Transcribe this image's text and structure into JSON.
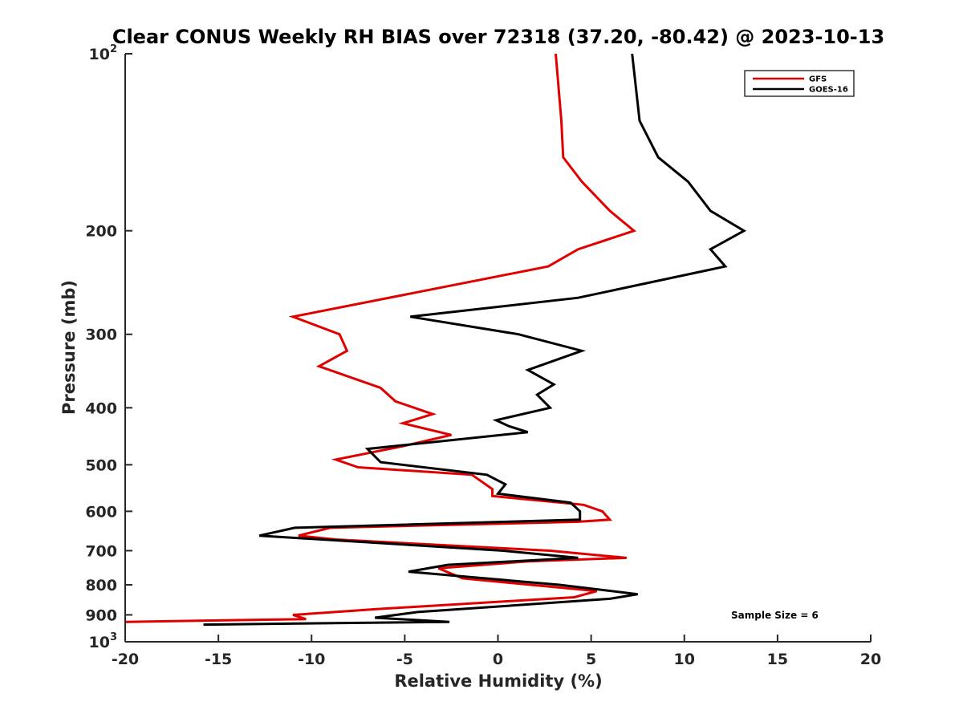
{
  "chart_data": {
    "type": "line",
    "title": "Clear CONUS Weekly RH BIAS over 72318 (37.20, -80.42) @ 2023-10-13",
    "xlabel": "Relative Humidity (%)",
    "ylabel": "Pressure (mb)",
    "xlim": [
      -20,
      20
    ],
    "ylim": [
      100,
      1000
    ],
    "y_scale": "log",
    "y_reversed": true,
    "grid": false,
    "legend_position": "top-right",
    "x_ticks": [
      -20,
      -15,
      -10,
      -5,
      0,
      5,
      10,
      15,
      20
    ],
    "x_tick_labels": [
      "-20",
      "-15",
      "-10",
      "-5",
      "0",
      "5",
      "10",
      "15",
      "20"
    ],
    "y_ticks": [
      200,
      300,
      400,
      500,
      600,
      700,
      800,
      900
    ],
    "y_tick_labels": [
      "200",
      "300",
      "400",
      "500",
      "600",
      "700",
      "800",
      "900"
    ],
    "y_end_labels": [
      {
        "value": 100,
        "base": "10",
        "exp": "2"
      },
      {
        "value": 1000,
        "base": "10",
        "exp": "3"
      }
    ],
    "annotation": "Sample Size = 6",
    "series": [
      {
        "name": "GFS",
        "color": "#e00000",
        "points": [
          {
            "x": 3.1,
            "y": 100
          },
          {
            "x": 3.4,
            "y": 130
          },
          {
            "x": 3.5,
            "y": 150
          },
          {
            "x": 4.5,
            "y": 165
          },
          {
            "x": 6.0,
            "y": 185
          },
          {
            "x": 7.3,
            "y": 200
          },
          {
            "x": 4.3,
            "y": 215
          },
          {
            "x": 2.7,
            "y": 230
          },
          {
            "x": -11.0,
            "y": 280
          },
          {
            "x": -8.5,
            "y": 300
          },
          {
            "x": -8.1,
            "y": 320
          },
          {
            "x": -9.6,
            "y": 340
          },
          {
            "x": -6.3,
            "y": 370
          },
          {
            "x": -5.5,
            "y": 390
          },
          {
            "x": -3.5,
            "y": 410
          },
          {
            "x": -5.1,
            "y": 425
          },
          {
            "x": -2.5,
            "y": 445
          },
          {
            "x": -5.1,
            "y": 465
          },
          {
            "x": -8.7,
            "y": 490
          },
          {
            "x": -7.5,
            "y": 505
          },
          {
            "x": -1.4,
            "y": 520
          },
          {
            "x": -0.3,
            "y": 550
          },
          {
            "x": -0.3,
            "y": 565
          },
          {
            "x": 4.6,
            "y": 585
          },
          {
            "x": 5.6,
            "y": 600
          },
          {
            "x": 6.0,
            "y": 620
          },
          {
            "x": 4.3,
            "y": 625
          },
          {
            "x": -9.0,
            "y": 640
          },
          {
            "x": -10.7,
            "y": 660
          },
          {
            "x": -8.7,
            "y": 670
          },
          {
            "x": 2.8,
            "y": 700
          },
          {
            "x": 6.9,
            "y": 720
          },
          {
            "x": 1.6,
            "y": 730
          },
          {
            "x": -3.2,
            "y": 750
          },
          {
            "x": -1.9,
            "y": 780
          },
          {
            "x": 5.3,
            "y": 820
          },
          {
            "x": 4.1,
            "y": 840
          },
          {
            "x": -6.5,
            "y": 880
          },
          {
            "x": -11.0,
            "y": 900
          },
          {
            "x": -10.3,
            "y": 915
          },
          {
            "x": -20.0,
            "y": 925
          }
        ]
      },
      {
        "name": "GOES-16",
        "color": "#000000",
        "points": [
          {
            "x": 7.2,
            "y": 100
          },
          {
            "x": 7.6,
            "y": 130
          },
          {
            "x": 8.6,
            "y": 150
          },
          {
            "x": 10.2,
            "y": 165
          },
          {
            "x": 11.4,
            "y": 185
          },
          {
            "x": 13.2,
            "y": 200
          },
          {
            "x": 11.4,
            "y": 215
          },
          {
            "x": 12.2,
            "y": 230
          },
          {
            "x": 4.3,
            "y": 260
          },
          {
            "x": -4.7,
            "y": 280
          },
          {
            "x": 1.1,
            "y": 300
          },
          {
            "x": 4.5,
            "y": 320
          },
          {
            "x": 1.6,
            "y": 345
          },
          {
            "x": 3.0,
            "y": 365
          },
          {
            "x": 2.1,
            "y": 380
          },
          {
            "x": 2.8,
            "y": 400
          },
          {
            "x": -0.1,
            "y": 420
          },
          {
            "x": 0.6,
            "y": 430
          },
          {
            "x": 1.6,
            "y": 440
          },
          {
            "x": -7.0,
            "y": 470
          },
          {
            "x": -6.3,
            "y": 495
          },
          {
            "x": -0.6,
            "y": 520
          },
          {
            "x": 0.4,
            "y": 540
          },
          {
            "x": 0.0,
            "y": 560
          },
          {
            "x": 3.9,
            "y": 580
          },
          {
            "x": 4.4,
            "y": 600
          },
          {
            "x": 4.4,
            "y": 620
          },
          {
            "x": -10.9,
            "y": 640
          },
          {
            "x": -12.8,
            "y": 660
          },
          {
            "x": 0.3,
            "y": 700
          },
          {
            "x": 4.3,
            "y": 720
          },
          {
            "x": -2.7,
            "y": 740
          },
          {
            "x": -4.8,
            "y": 760
          },
          {
            "x": 3.3,
            "y": 800
          },
          {
            "x": 7.5,
            "y": 830
          },
          {
            "x": 6.0,
            "y": 845
          },
          {
            "x": -4.3,
            "y": 890
          },
          {
            "x": -6.6,
            "y": 910
          },
          {
            "x": -2.6,
            "y": 925
          },
          {
            "x": -15.8,
            "y": 935
          }
        ]
      }
    ]
  }
}
